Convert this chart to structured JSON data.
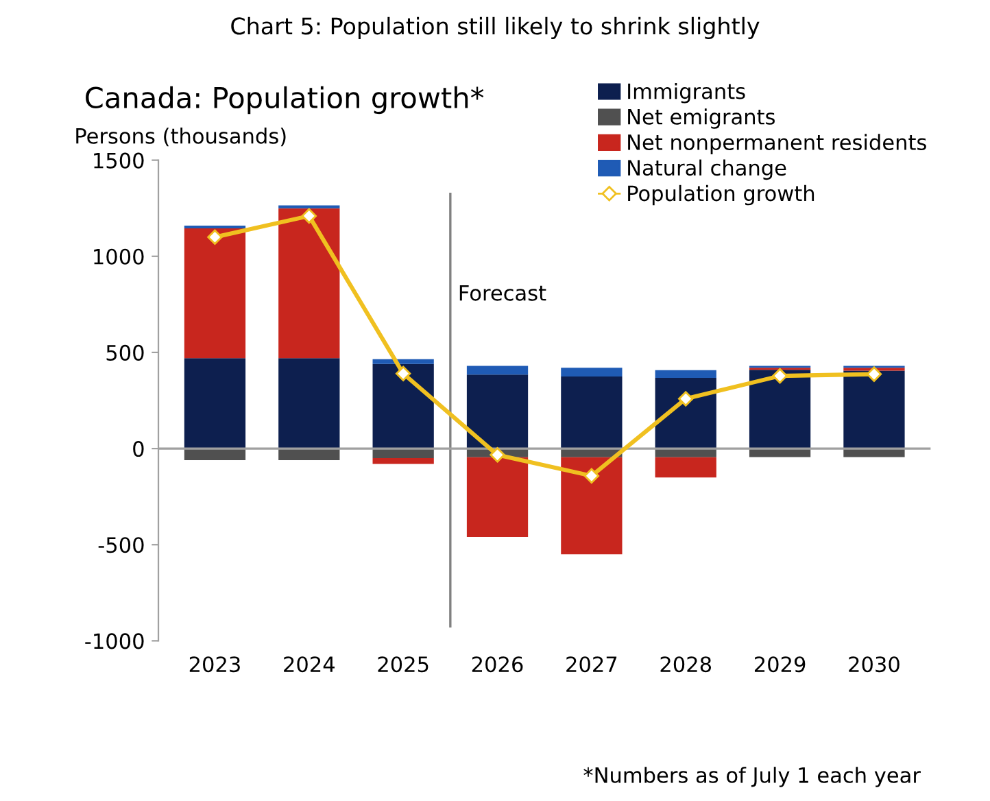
{
  "chart_data": {
    "type": "bar",
    "stacked": true,
    "title": "Chart 5: Population still likely to shrink slightly",
    "subtitle": "Canada: Population growth*",
    "ylabel": "Persons (thousands)",
    "categories": [
      "2023",
      "2024",
      "2025",
      "2026",
      "2027",
      "2028",
      "2029",
      "2030"
    ],
    "series": [
      {
        "name": "Immigrants",
        "color": "#0d1f4f",
        "values": [
          470,
          470,
          440,
          385,
          375,
          368,
          410,
          405
        ]
      },
      {
        "name": "Net emigrants",
        "color": "#505050",
        "values": [
          -60,
          -60,
          -50,
          -45,
          -45,
          -45,
          -44,
          -44
        ]
      },
      {
        "name": "Net nonpermanent residents",
        "color": "#c8261e",
        "values": [
          675,
          780,
          -30,
          -415,
          -505,
          -105,
          10,
          15
        ]
      },
      {
        "name": "Natural change",
        "color": "#1f5bb5",
        "values": [
          15,
          15,
          25,
          45,
          45,
          40,
          10,
          10
        ]
      },
      {
        "name": "Population growth",
        "type": "line",
        "color": "#f0c020",
        "marker": "diamond",
        "values": [
          1100,
          1210,
          390,
          -33,
          -142,
          259,
          378,
          387
        ]
      }
    ],
    "ylim": [
      -1000,
      1500
    ],
    "yticks": [
      -1000,
      -500,
      0,
      500,
      1000,
      1500
    ],
    "ref_lines": [
      {
        "axis": "y",
        "value": 0,
        "color": "#a0a0a0"
      },
      {
        "axis": "x",
        "value": "2026",
        "label": "Forecast",
        "color": "#808080"
      }
    ],
    "legend": "top right",
    "grid": false,
    "annotations": [
      "*Numbers as of July 1 each year"
    ]
  }
}
